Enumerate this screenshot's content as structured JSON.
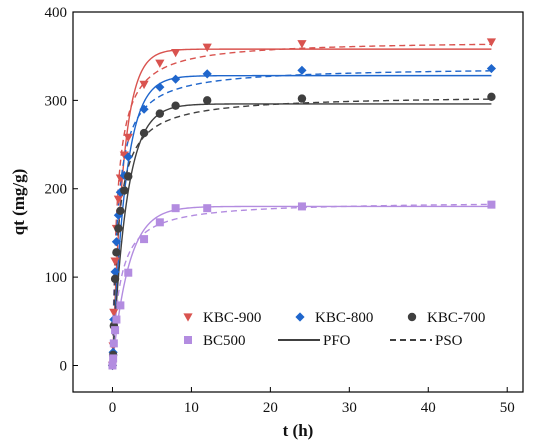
{
  "chart_data": {
    "type": "scatter",
    "xlabel": "t (h)",
    "ylabel": "qt (mg/g)",
    "xlim": [
      -5,
      52
    ],
    "ylim": [
      -30,
      400
    ],
    "x_ticks": [
      0,
      10,
      20,
      30,
      40,
      50
    ],
    "y_ticks": [
      0,
      100,
      200,
      300,
      400
    ],
    "grid": false,
    "legend_position": "bottom-right inside",
    "series": [
      {
        "name": "KBC-900",
        "color": "#d9534f",
        "marker": "triangle-down",
        "points": [
          [
            0,
            0
          ],
          [
            0.083,
            22
          ],
          [
            0.17,
            60
          ],
          [
            0.33,
            118
          ],
          [
            0.5,
            155
          ],
          [
            0.75,
            188
          ],
          [
            1,
            212
          ],
          [
            1.5,
            238
          ],
          [
            2,
            258
          ],
          [
            4,
            318
          ],
          [
            6,
            342
          ],
          [
            8,
            354
          ],
          [
            12,
            360
          ],
          [
            24,
            364
          ],
          [
            48,
            366
          ]
        ],
        "pfo": {
          "qe": 358,
          "k": 0.72
        },
        "pso": {
          "qe": 368,
          "k": 0.0045
        }
      },
      {
        "name": "KBC-800",
        "color": "#1f66cc",
        "marker": "diamond",
        "points": [
          [
            0,
            0
          ],
          [
            0.083,
            15
          ],
          [
            0.17,
            52
          ],
          [
            0.33,
            106
          ],
          [
            0.5,
            140
          ],
          [
            0.75,
            170
          ],
          [
            1,
            196
          ],
          [
            1.5,
            215
          ],
          [
            2,
            236
          ],
          [
            4,
            290
          ],
          [
            6,
            315
          ],
          [
            8,
            324
          ],
          [
            12,
            330
          ],
          [
            24,
            334
          ],
          [
            48,
            336
          ]
        ],
        "pfo": {
          "qe": 328,
          "k": 0.6
        },
        "pso": {
          "qe": 338,
          "k": 0.0045
        }
      },
      {
        "name": "KBC-700",
        "color": "#3f3f3f",
        "marker": "circle",
        "points": [
          [
            0,
            0
          ],
          [
            0.083,
            12
          ],
          [
            0.17,
            45
          ],
          [
            0.33,
            98
          ],
          [
            0.5,
            128
          ],
          [
            0.75,
            155
          ],
          [
            1,
            175
          ],
          [
            1.5,
            198
          ],
          [
            2,
            214
          ],
          [
            4,
            263
          ],
          [
            6,
            285
          ],
          [
            8,
            294
          ],
          [
            12,
            300
          ],
          [
            24,
            302
          ],
          [
            48,
            304
          ]
        ],
        "pfo": {
          "qe": 296,
          "k": 0.55
        },
        "pso": {
          "qe": 306,
          "k": 0.0045
        }
      },
      {
        "name": "BC500",
        "color": "#b38ce0",
        "marker": "square",
        "points": [
          [
            0,
            0
          ],
          [
            0.083,
            8
          ],
          [
            0.17,
            25
          ],
          [
            0.33,
            40
          ],
          [
            0.5,
            52
          ],
          [
            1,
            68
          ],
          [
            2,
            105
          ],
          [
            4,
            143
          ],
          [
            6,
            162
          ],
          [
            8,
            178
          ],
          [
            12,
            178
          ],
          [
            24,
            180
          ],
          [
            48,
            182
          ]
        ],
        "pfo": {
          "qe": 180,
          "k": 0.48
        },
        "pso": {
          "qe": 186,
          "k": 0.0055
        }
      }
    ],
    "line_legend": [
      {
        "name": "PFO",
        "style": "solid"
      },
      {
        "name": "PSO",
        "style": "dashed"
      }
    ]
  }
}
